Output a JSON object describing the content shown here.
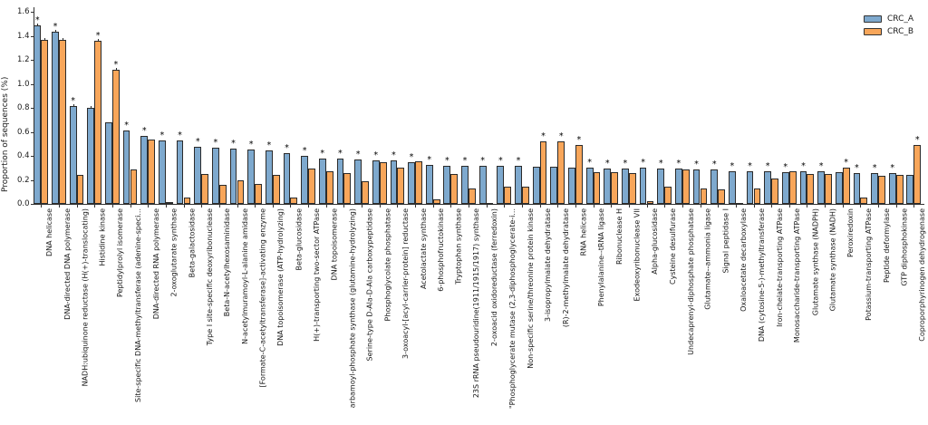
{
  "figure": {
    "title": "",
    "ylabel": "Proportion of sequences (%)",
    "y_ticks": [
      "0.0",
      "0.2",
      "0.4",
      "0.6",
      "0.8",
      "1.0",
      "1.2",
      "1.4",
      "1.6"
    ],
    "significance_marker": "*",
    "colors": {
      "crc_a": "#7EA9CE",
      "crc_b": "#F8A65A",
      "edge": "#2b2b2b"
    }
  },
  "legend": {
    "items": [
      {
        "label": "CRC_A",
        "color": "#7EA9CE"
      },
      {
        "label": "CRC_B",
        "color": "#F8A65A"
      }
    ],
    "position": "upper right"
  },
  "chart_data": {
    "type": "bar",
    "title": "",
    "xlabel": "",
    "ylabel": "Proportion of sequences (%)",
    "ylim": [
      0,
      1.6
    ],
    "grid": false,
    "legend_position": "upper right",
    "categories": [
      "DNA helicase",
      "DNA-directed DNA polymerase",
      "NADH:ubiquinone reductase (H(+)-translocating)",
      "Histidine kinase",
      "Peptidylprolyl isomerase",
      "Site-specific DNA-methyltransferase (adenine-speci...",
      "DNA-directed RNA polymerase",
      "2-oxoglutarate synthase",
      "Beta-galactosidase",
      "Type I site-specific deoxyribonuclease",
      "Beta-N-acetylhexosaminidase",
      "N-acetylmuramoyl-L-alanine amidase",
      "[Formate-C-acetyltransferase]-activating enzyme",
      "DNA topoisomerase (ATP-hydrolyzing)",
      "Beta-glucosidase",
      "H(+)-transporting two-sector ATPase",
      "DNA topoisomerase",
      "arbamoyl-phosphate synthase (glutamine-hydrolyzing)",
      "Serine-type D-Ala-D-Ala carboxypeptidase",
      "Phosphoglycolate phosphatase",
      "3-oxoacyl-[acyl-carrier-protein] reductase",
      "Acetolactate synthase",
      "6-phosphofructokinase",
      "Tryptophan synthase",
      "23S rRNA pseudouridine(1911/1915/1917) synthase",
      "2-oxoacid oxidoreductase (ferredoxin)",
      "\"Phosphoglycerate mutase (2,3-diphosphoglycerate-i...",
      "Non-specific serine/threonine protein kinase",
      "3-isopropylmalate dehydratase",
      "(R)-2-methylmalate dehydratase",
      "RNA helicase",
      "Phenylalanine--tRNA ligase",
      "Ribonuclease H",
      "Exodeoxyribonuclease VII",
      "Alpha-glucosidase",
      "Cysteine desulfurase",
      "Undecaprenyl-diphosphate phosphatase",
      "Glutamate--ammonia ligase",
      "Signal peptidase I",
      "Oxaloacetate decarboxylase",
      "DNA (cytosine-5-)-methyltransferase",
      "Iron-chelate-transporting ATPase",
      "Monosaccharide-transporting ATPase",
      "Glutamate synthase (NADPH)",
      "Glutamate synthase (NADH)",
      "Peroxiredoxin",
      "Potassium-transporting ATPase",
      "Peptide deformylase",
      "GTP diphosphokinase",
      "Coproporphyrinogen dehydrogenase"
    ],
    "series": [
      {
        "name": "CRC_A",
        "color": "#7EA9CE",
        "values": [
          1.49,
          1.44,
          0.82,
          0.8,
          0.68,
          0.61,
          0.57,
          0.53,
          0.53,
          0.48,
          0.47,
          0.46,
          0.45,
          0.445,
          0.42,
          0.4,
          0.38,
          0.375,
          0.37,
          0.365,
          0.36,
          0.345,
          0.325,
          0.32,
          0.32,
          0.32,
          0.32,
          0.315,
          0.31,
          0.31,
          0.3,
          0.3,
          0.295,
          0.295,
          0.3,
          0.295,
          0.295,
          0.29,
          0.285,
          0.27,
          0.27,
          0.27,
          0.265,
          0.27,
          0.27,
          0.265,
          0.26,
          0.255,
          0.255,
          0.245
        ]
      },
      {
        "name": "CRC_B",
        "color": "#F8A65A",
        "values": [
          1.37,
          1.37,
          0.24,
          1.36,
          1.12,
          0.29,
          0.54,
          0.015,
          0.05,
          0.25,
          0.16,
          0.2,
          0.165,
          0.24,
          0.05,
          0.295,
          0.27,
          0.26,
          0.19,
          0.35,
          0.3,
          0.355,
          0.04,
          0.25,
          0.13,
          0.01,
          0.14,
          0.145,
          0.52,
          0.52,
          0.49,
          0.265,
          0.265,
          0.26,
          0.02,
          0.145,
          0.285,
          0.13,
          0.12,
          0.01,
          0.13,
          0.215,
          0.275,
          0.25,
          0.25,
          0.305,
          0.055,
          0.235,
          0.245,
          0.49
        ]
      }
    ],
    "significant_series_per_category": [
      "CRC_A",
      "CRC_A",
      "CRC_A",
      "CRC_B",
      "CRC_B",
      "CRC_A",
      "CRC_A",
      "CRC_A",
      "CRC_A",
      "CRC_A",
      "CRC_A",
      "CRC_A",
      "CRC_A",
      "CRC_A",
      "CRC_A",
      "CRC_A",
      "CRC_A",
      "CRC_A",
      "CRC_A",
      "CRC_A",
      "CRC_A",
      "CRC_A",
      "CRC_A",
      "CRC_A",
      "CRC_A",
      "CRC_A",
      "CRC_A",
      "CRC_A",
      "CRC_B",
      "CRC_B",
      "CRC_B",
      "CRC_A",
      "CRC_A",
      "CRC_A",
      "CRC_A",
      "CRC_A",
      "CRC_A",
      "CRC_A",
      "CRC_A",
      "CRC_A",
      "CRC_A",
      "CRC_A",
      "CRC_A",
      "CRC_A",
      "CRC_A",
      "CRC_B",
      "CRC_A",
      "CRC_A",
      "CRC_A",
      "CRC_B"
    ]
  }
}
